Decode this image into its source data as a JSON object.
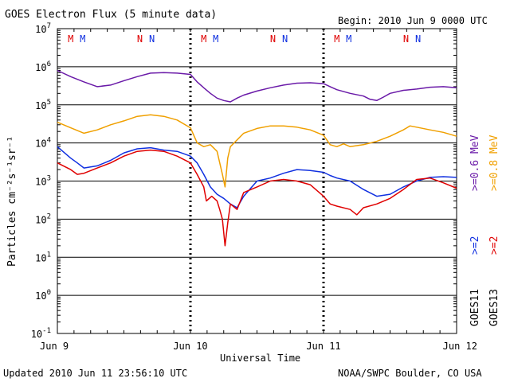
{
  "chart_data": {
    "type": "line",
    "title": "GOES Electron Flux (5 minute data)",
    "begin": "Begin: 2010 Jun 9 0000 UTC",
    "xlabel": "Universal Time",
    "ylabel": "Particles cm⁻²s⁻¹sr⁻¹",
    "updated": "Updated 2010 Jun 11 23:56:10 UTC",
    "credit": "NOAA/SWPC Boulder, CO USA",
    "y_scale": "log",
    "ylim_exponents": [
      -1,
      7
    ],
    "y_tick_labels": [
      {
        "exp": 7,
        "text": "10",
        "sup": "7"
      },
      {
        "exp": 6,
        "text": "10",
        "sup": "6"
      },
      {
        "exp": 5,
        "text": "10",
        "sup": "5"
      },
      {
        "exp": 4,
        "text": "10",
        "sup": "4"
      },
      {
        "exp": 3,
        "text": "10",
        "sup": "3"
      },
      {
        "exp": 2,
        "text": "10",
        "sup": "2"
      },
      {
        "exp": 1,
        "text": "10",
        "sup": "1"
      },
      {
        "exp": 0,
        "text": "10",
        "sup": "0"
      },
      {
        "exp": -1,
        "text": "10",
        "sup": "-1"
      }
    ],
    "x_days": [
      "Jun 9",
      "Jun 10",
      "Jun 11",
      "Jun 12"
    ],
    "x_range_days": [
      0,
      3
    ],
    "reference_level": 1000,
    "grid": "horizontal at each decade",
    "legend_placement": "right side, vertical",
    "legend_lines": [
      {
        "text": ">=0.6  MeV",
        "color": "#6a1aa8"
      },
      {
        "text": ">=0.8  MeV",
        "color": "#f0a000"
      },
      {
        "text": ">=2",
        "color": "#1030e0"
      },
      {
        "text": ">=2",
        "color": "#e00000"
      },
      {
        "text": "GOES11",
        "color": "#000000"
      },
      {
        "text": "GOES13",
        "color": "#000000"
      }
    ],
    "mn_markers": [
      {
        "day": 0.1,
        "label": "M",
        "color": "#e00000"
      },
      {
        "day": 0.19,
        "label": "M",
        "color": "#1030e0"
      },
      {
        "day": 0.62,
        "label": "N",
        "color": "#e00000"
      },
      {
        "day": 0.71,
        "label": "N",
        "color": "#1030e0"
      },
      {
        "day": 1.1,
        "label": "M",
        "color": "#e00000"
      },
      {
        "day": 1.19,
        "label": "M",
        "color": "#1030e0"
      },
      {
        "day": 1.62,
        "label": "N",
        "color": "#e00000"
      },
      {
        "day": 1.71,
        "label": "N",
        "color": "#1030e0"
      },
      {
        "day": 2.1,
        "label": "M",
        "color": "#e00000"
      },
      {
        "day": 2.19,
        "label": "M",
        "color": "#1030e0"
      },
      {
        "day": 2.62,
        "label": "N",
        "color": "#e00000"
      },
      {
        "day": 2.71,
        "label": "N",
        "color": "#1030e0"
      }
    ],
    "series": [
      {
        "name": "GOES11 >=0.6 MeV",
        "color": "#6a1aa8",
        "points": [
          [
            0.0,
            800000
          ],
          [
            0.1,
            550000
          ],
          [
            0.2,
            400000
          ],
          [
            0.3,
            300000
          ],
          [
            0.4,
            330000
          ],
          [
            0.5,
            430000
          ],
          [
            0.6,
            550000
          ],
          [
            0.7,
            680000
          ],
          [
            0.8,
            700000
          ],
          [
            0.9,
            680000
          ],
          [
            1.0,
            630000
          ],
          [
            1.05,
            400000
          ],
          [
            1.1,
            280000
          ],
          [
            1.15,
            200000
          ],
          [
            1.2,
            150000
          ],
          [
            1.25,
            130000
          ],
          [
            1.3,
            120000
          ],
          [
            1.35,
            150000
          ],
          [
            1.4,
            180000
          ],
          [
            1.5,
            230000
          ],
          [
            1.6,
            280000
          ],
          [
            1.7,
            330000
          ],
          [
            1.8,
            370000
          ],
          [
            1.9,
            380000
          ],
          [
            2.0,
            360000
          ],
          [
            2.05,
            300000
          ],
          [
            2.1,
            250000
          ],
          [
            2.2,
            200000
          ],
          [
            2.3,
            170000
          ],
          [
            2.35,
            140000
          ],
          [
            2.4,
            130000
          ],
          [
            2.45,
            160000
          ],
          [
            2.5,
            200000
          ],
          [
            2.6,
            240000
          ],
          [
            2.7,
            260000
          ],
          [
            2.8,
            290000
          ],
          [
            2.9,
            300000
          ],
          [
            3.0,
            280000
          ]
        ]
      },
      {
        "name": "GOES13 >=0.8 MeV",
        "color": "#f0a000",
        "points": [
          [
            0.0,
            35000
          ],
          [
            0.1,
            25000
          ],
          [
            0.2,
            18000
          ],
          [
            0.3,
            22000
          ],
          [
            0.4,
            30000
          ],
          [
            0.5,
            38000
          ],
          [
            0.6,
            50000
          ],
          [
            0.7,
            55000
          ],
          [
            0.8,
            50000
          ],
          [
            0.9,
            40000
          ],
          [
            1.0,
            25000
          ],
          [
            1.05,
            10000
          ],
          [
            1.1,
            8000
          ],
          [
            1.15,
            9000
          ],
          [
            1.2,
            6000
          ],
          [
            1.24,
            1500
          ],
          [
            1.26,
            700
          ],
          [
            1.28,
            4000
          ],
          [
            1.3,
            8000
          ],
          [
            1.35,
            12000
          ],
          [
            1.4,
            18000
          ],
          [
            1.5,
            24000
          ],
          [
            1.6,
            28000
          ],
          [
            1.7,
            28000
          ],
          [
            1.8,
            26000
          ],
          [
            1.9,
            22000
          ],
          [
            2.0,
            16000
          ],
          [
            2.05,
            9000
          ],
          [
            2.1,
            8000
          ],
          [
            2.15,
            9500
          ],
          [
            2.2,
            8000
          ],
          [
            2.3,
            9000
          ],
          [
            2.4,
            11000
          ],
          [
            2.5,
            15000
          ],
          [
            2.6,
            22000
          ],
          [
            2.65,
            28000
          ],
          [
            2.7,
            26000
          ],
          [
            2.8,
            22000
          ],
          [
            2.9,
            19000
          ],
          [
            3.0,
            15000
          ]
        ]
      },
      {
        "name": "GOES11 >=2 MeV",
        "color": "#1030e0",
        "points": [
          [
            0.0,
            8000
          ],
          [
            0.1,
            4000
          ],
          [
            0.15,
            3000
          ],
          [
            0.2,
            2200
          ],
          [
            0.3,
            2500
          ],
          [
            0.4,
            3500
          ],
          [
            0.5,
            5500
          ],
          [
            0.6,
            7000
          ],
          [
            0.7,
            7500
          ],
          [
            0.8,
            6500
          ],
          [
            0.9,
            6000
          ],
          [
            1.0,
            4500
          ],
          [
            1.05,
            3000
          ],
          [
            1.1,
            1500
          ],
          [
            1.15,
            700
          ],
          [
            1.2,
            450
          ],
          [
            1.25,
            350
          ],
          [
            1.3,
            250
          ],
          [
            1.35,
            200
          ],
          [
            1.4,
            400
          ],
          [
            1.5,
            1000
          ],
          [
            1.6,
            1200
          ],
          [
            1.7,
            1600
          ],
          [
            1.8,
            2000
          ],
          [
            1.9,
            1900
          ],
          [
            2.0,
            1700
          ],
          [
            2.05,
            1400
          ],
          [
            2.1,
            1200
          ],
          [
            2.2,
            1000
          ],
          [
            2.3,
            600
          ],
          [
            2.4,
            400
          ],
          [
            2.5,
            450
          ],
          [
            2.6,
            700
          ],
          [
            2.7,
            1000
          ],
          [
            2.8,
            1250
          ],
          [
            2.9,
            1300
          ],
          [
            3.0,
            1250
          ]
        ]
      },
      {
        "name": "GOES13 >=2 MeV",
        "color": "#e00000",
        "points": [
          [
            0.0,
            3000
          ],
          [
            0.1,
            2000
          ],
          [
            0.15,
            1500
          ],
          [
            0.2,
            1600
          ],
          [
            0.3,
            2200
          ],
          [
            0.4,
            3000
          ],
          [
            0.5,
            4500
          ],
          [
            0.6,
            6000
          ],
          [
            0.7,
            6500
          ],
          [
            0.8,
            6000
          ],
          [
            0.9,
            4500
          ],
          [
            1.0,
            3000
          ],
          [
            1.05,
            1500
          ],
          [
            1.1,
            700
          ],
          [
            1.12,
            300
          ],
          [
            1.16,
            400
          ],
          [
            1.2,
            300
          ],
          [
            1.22,
            180
          ],
          [
            1.24,
            100
          ],
          [
            1.26,
            20
          ],
          [
            1.28,
            80
          ],
          [
            1.3,
            250
          ],
          [
            1.35,
            180
          ],
          [
            1.4,
            500
          ],
          [
            1.5,
            700
          ],
          [
            1.6,
            1000
          ],
          [
            1.7,
            1100
          ],
          [
            1.8,
            1000
          ],
          [
            1.9,
            800
          ],
          [
            2.0,
            400
          ],
          [
            2.05,
            250
          ],
          [
            2.1,
            220
          ],
          [
            2.2,
            180
          ],
          [
            2.25,
            130
          ],
          [
            2.3,
            200
          ],
          [
            2.4,
            250
          ],
          [
            2.5,
            350
          ],
          [
            2.6,
            600
          ],
          [
            2.7,
            1100
          ],
          [
            2.8,
            1200
          ],
          [
            2.9,
            900
          ],
          [
            3.0,
            650
          ]
        ]
      }
    ]
  }
}
